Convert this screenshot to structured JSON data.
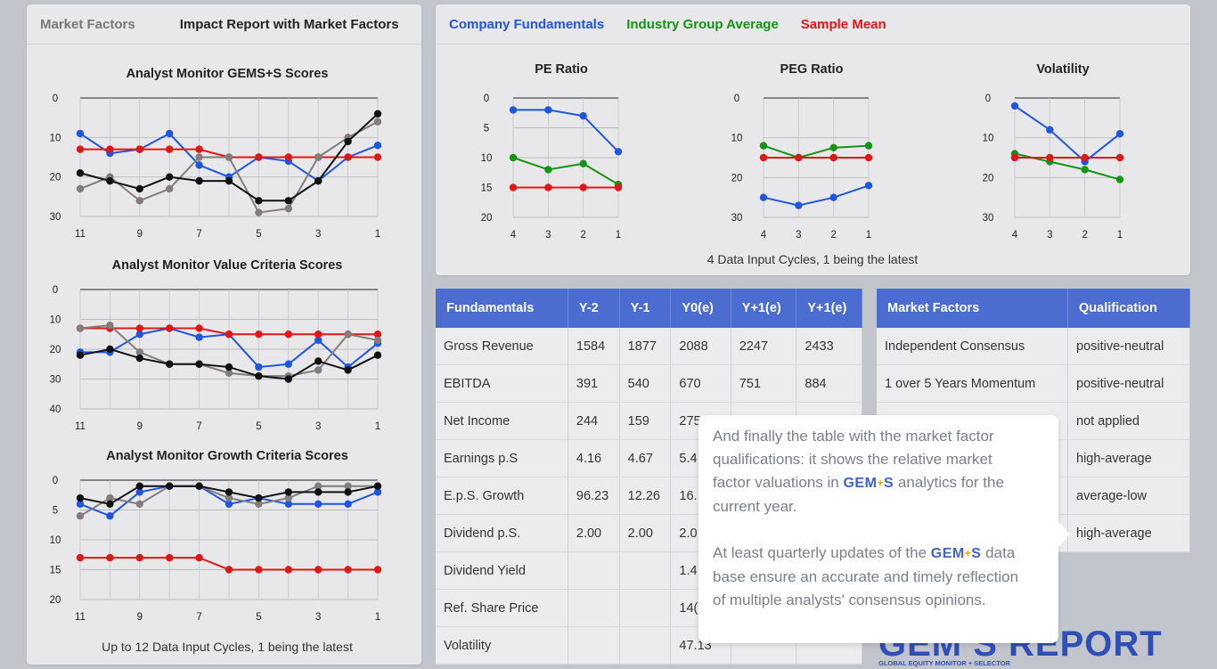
{
  "left": {
    "tabs": [
      {
        "label": "Market Factors"
      },
      {
        "label": "Impact Report with Market Factors"
      }
    ],
    "charts": [
      {
        "title": "Analyst Monitor GEMS+S Scores",
        "yticks": [
          "0",
          "10",
          "20",
          "30"
        ],
        "ymax": 30,
        "xticks": [
          "11",
          "9",
          "7",
          "5",
          "3",
          "1"
        ],
        "series": [
          {
            "color": "#1f56e0",
            "values": [
              9,
              14,
              13,
              9,
              17,
              20,
              15,
              16,
              21,
              15,
              12
            ]
          },
          {
            "color": "#e01717",
            "values": [
              13,
              13,
              13,
              13,
              13,
              15,
              15,
              15,
              15,
              15,
              15
            ]
          },
          {
            "color": "#837c7c",
            "values": [
              23,
              20,
              26,
              23,
              15,
              15,
              29,
              28,
              15,
              10,
              6
            ]
          },
          {
            "color": "#111111",
            "values": [
              19,
              21,
              23,
              20,
              21,
              21,
              26,
              26,
              21,
              11,
              4
            ]
          }
        ]
      },
      {
        "title": "Analyst Monitor Value Criteria Scores",
        "yticks": [
          "0",
          "10",
          "20",
          "30",
          "40"
        ],
        "ymax": 40,
        "xticks": [
          "11",
          "9",
          "7",
          "5",
          "3",
          "1"
        ],
        "series": [
          {
            "color": "#1f56e0",
            "values": [
              21,
              21,
              15,
              13,
              16,
              15,
              26,
              25,
              17,
              26,
              18
            ]
          },
          {
            "color": "#e01717",
            "values": [
              13,
              13,
              13,
              13,
              13,
              15,
              15,
              15,
              15,
              15,
              15
            ]
          },
          {
            "color": "#837c7c",
            "values": [
              13,
              12,
              21,
              25,
              25,
              28,
              29,
              29,
              27,
              15,
              17
            ]
          },
          {
            "color": "#111111",
            "values": [
              22,
              20,
              23,
              25,
              25,
              26,
              29,
              30,
              24,
              27,
              22
            ]
          }
        ]
      },
      {
        "title": "Analyst Monitor Growth Criteria Scores",
        "yticks": [
          "0",
          "5",
          "10",
          "15",
          "20"
        ],
        "ymax": 20,
        "xticks": [
          "11",
          "9",
          "7",
          "5",
          "3",
          "1"
        ],
        "series": [
          {
            "color": "#1f56e0",
            "values": [
              4,
              6,
              2,
              1,
              1,
              4,
              3,
              4,
              4,
              4,
              2
            ]
          },
          {
            "color": "#e01717",
            "values": [
              13,
              13,
              13,
              13,
              13,
              15,
              15,
              15,
              15,
              15,
              15
            ]
          },
          {
            "color": "#837c7c",
            "values": [
              6,
              3,
              4,
              1,
              1,
              3,
              4,
              3,
              1,
              1,
              1
            ]
          },
          {
            "color": "#111111",
            "values": [
              3,
              4,
              1,
              1,
              1,
              2,
              3,
              2,
              2,
              2,
              1
            ]
          }
        ]
      }
    ],
    "footer": "Up to 12 Data Input Cycles, 1 being the latest"
  },
  "right": {
    "legend": [
      {
        "label": "Company Fundamentals",
        "color": "#1f56e0"
      },
      {
        "label": "Industry Group Average",
        "color": "#149314"
      },
      {
        "label": "Sample Mean",
        "color": "#e01717"
      }
    ],
    "charts": [
      {
        "title": "PE Ratio",
        "yticks": [
          "0",
          "5",
          "10",
          "15",
          "20"
        ],
        "ymax": 20,
        "xticks": [
          "4",
          "3",
          "2",
          "1"
        ],
        "series": [
          {
            "color": "#1f56e0",
            "values": [
              2,
              2,
              3,
              9
            ]
          },
          {
            "color": "#149314",
            "values": [
              10,
              12,
              11,
              14.5
            ]
          },
          {
            "color": "#e01717",
            "values": [
              15,
              15,
              15,
              15
            ]
          }
        ]
      },
      {
        "title": "PEG Ratio",
        "yticks": [
          "0",
          "10",
          "20",
          "30"
        ],
        "ymax": 30,
        "xticks": [
          "4",
          "3",
          "2",
          "1"
        ],
        "series": [
          {
            "color": "#1f56e0",
            "values": [
              25,
              27,
              25,
              22
            ]
          },
          {
            "color": "#149314",
            "values": [
              12,
              15,
              12.5,
              12
            ]
          },
          {
            "color": "#e01717",
            "values": [
              15,
              15,
              15,
              15
            ]
          }
        ]
      },
      {
        "title": "Volatility",
        "yticks": [
          "0",
          "10",
          "20",
          "30"
        ],
        "ymax": 30,
        "xticks": [
          "4",
          "3",
          "2",
          "1"
        ],
        "series": [
          {
            "color": "#1f56e0",
            "values": [
              2,
              8,
              16,
              9
            ]
          },
          {
            "color": "#149314",
            "values": [
              14,
              16,
              18,
              20.5
            ]
          },
          {
            "color": "#e01717",
            "values": [
              15,
              15,
              15,
              15
            ]
          }
        ]
      }
    ],
    "footer": "4 Data Input Cycles, 1 being the latest"
  },
  "fundamentals": {
    "headers": [
      "Fundamentals",
      "Y-2",
      "Y-1",
      "Y0(e)",
      "Y+1(e)",
      "Y+1(e)"
    ],
    "rows": [
      [
        "Gross Revenue",
        "1584",
        "1877",
        "2088",
        "2247",
        "2433"
      ],
      [
        "EBITDA",
        "391",
        "540",
        "670",
        "751",
        "884"
      ],
      [
        "Net Income",
        "244",
        "159",
        "275",
        "",
        ""
      ],
      [
        "Earnings p.S",
        "4.16",
        "4.67",
        "5.4",
        "",
        ""
      ],
      [
        "E.p.S. Growth",
        "96.23",
        "12.26",
        "16.",
        "",
        ""
      ],
      [
        "Dividend p.S.",
        "2.00",
        "2.00",
        "2.0",
        "",
        ""
      ],
      [
        "Dividend Yield",
        "",
        "",
        "1.4",
        "",
        ""
      ],
      [
        "Ref. Share Price",
        "",
        "",
        "14(",
        "",
        ""
      ],
      [
        "Volatility",
        "",
        "",
        "47.13",
        "",
        ""
      ]
    ]
  },
  "market_factors": {
    "headers": [
      "Market Factors",
      "Qualification"
    ],
    "rows": [
      [
        "Independent Consensus",
        "positive-neutral"
      ],
      [
        "1 over 5 Years Momentum",
        "positive-neutral"
      ],
      [
        "",
        "not applied"
      ],
      [
        "",
        "high-average"
      ],
      [
        "",
        "average-low"
      ],
      [
        "",
        "high-average"
      ]
    ]
  },
  "tooltip": {
    "p1_before": "And finally the table with the market factor qualifications: it shows the relative market factor valuations in",
    "p1_after": "analytics for the current year.",
    "p2_before": "At least quarterly updates of the",
    "p2_after": "data base ensure an accurate and timely reflection of multiple analysts' consensus opinions.",
    "gems_left": "GEM",
    "gems_plus": "+",
    "gems_right": "S"
  },
  "brand": {
    "logo_text": "GEM S REPORT",
    "tagline": "GLOBAL EQUITY MONITOR + SELECTOR"
  }
}
